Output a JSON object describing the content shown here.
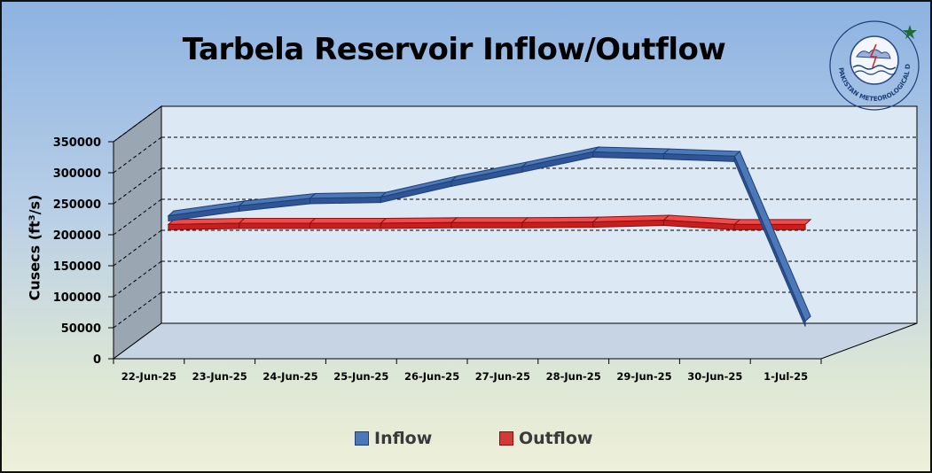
{
  "chart_data": {
    "type": "line",
    "title": "Tarbela Reservoir Inflow/Outflow",
    "ylabel": "Cusecs (ft³/s)",
    "xlabel": "",
    "ylim": [
      0,
      350000
    ],
    "yticks": [
      "0",
      "50000",
      "100000",
      "150000",
      "200000",
      "250000",
      "300000",
      "350000"
    ],
    "categories": [
      "22-Jun-25",
      "23-Jun-25",
      "24-Jun-25",
      "25-Jun-25",
      "26-Jun-25",
      "27-Jun-25",
      "28-Jun-25",
      "29-Jun-25",
      "30-Jun-25",
      "1-Jul-25"
    ],
    "series": [
      {
        "name": "Inflow",
        "color": "#2f5597",
        "values": [
          202000,
          218000,
          230000,
          232000,
          258000,
          281000,
          305000,
          302000,
          298000,
          32000
        ]
      },
      {
        "name": "Outflow",
        "color": "#e31a1c",
        "values": [
          188000,
          190000,
          190000,
          190000,
          191000,
          191000,
          192000,
          195000,
          188000,
          188000
        ]
      }
    ],
    "grid": "horizontal dashed",
    "legend": "bottom",
    "style": "3d-line"
  },
  "logo": {
    "text": "PAKISTAN METEOROLOGICAL DEPARTMENT",
    "icon": "pmd-emblem-icon"
  }
}
